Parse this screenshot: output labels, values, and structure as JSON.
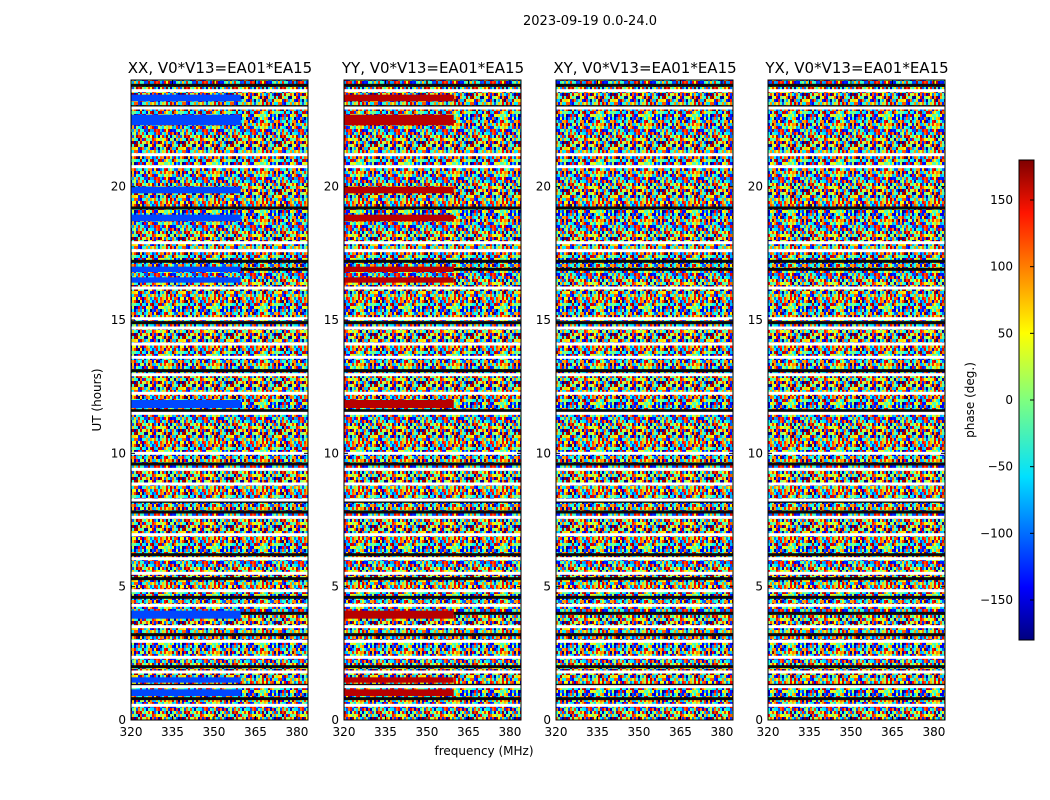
{
  "suptitle": "2023-09-19 0.0-24.0",
  "chart_data": {
    "type": "heatmap",
    "x_label": "frequency (MHz)",
    "y_label": "UT (hours)",
    "x_ticks": [
      "320",
      "335",
      "350",
      "365",
      "380"
    ],
    "x_tick_values": [
      320,
      335,
      350,
      365,
      380
    ],
    "x_range": [
      320,
      384
    ],
    "y_ticks": [
      "0",
      "5",
      "10",
      "15",
      "20"
    ],
    "y_tick_values": [
      0,
      5,
      10,
      15,
      20
    ],
    "y_range": [
      0,
      24
    ],
    "colorbar": {
      "label": "phase (deg.)",
      "range": [
        -180,
        180
      ],
      "ticks": [
        "150",
        "100",
        "50",
        "0",
        "−50",
        "−100",
        "−150"
      ],
      "tick_values": [
        150,
        100,
        50,
        0,
        -50,
        -100,
        -150
      ],
      "colormap": "jet"
    },
    "panels": [
      {
        "title": "XX, V0*V13=EA01*EA15",
        "coherent_phase_deg": -110,
        "coherent_bands_hours": [
          [
            23.2,
            23.45
          ],
          [
            22.3,
            22.7
          ],
          [
            19.75,
            20.0
          ],
          [
            18.7,
            18.95
          ],
          [
            16.8,
            17.0
          ],
          [
            16.4,
            16.6
          ],
          [
            11.7,
            12.0
          ],
          [
            3.8,
            4.1
          ],
          [
            1.4,
            1.6
          ],
          [
            0.9,
            1.15
          ]
        ]
      },
      {
        "title": "YY, V0*V13=EA01*EA15",
        "coherent_phase_deg": 160,
        "coherent_bands_hours": [
          [
            23.2,
            23.45
          ],
          [
            22.3,
            22.7
          ],
          [
            19.75,
            20.0
          ],
          [
            18.7,
            18.95
          ],
          [
            16.8,
            17.0
          ],
          [
            16.4,
            16.6
          ],
          [
            11.7,
            12.0
          ],
          [
            3.8,
            4.1
          ],
          [
            1.4,
            1.6
          ],
          [
            0.9,
            1.15
          ]
        ]
      },
      {
        "title": "XY, V0*V13=EA01*EA15",
        "coherent_phase_deg": null,
        "coherent_bands_hours": []
      },
      {
        "title": "YX, V0*V13=EA01*EA15",
        "coherent_phase_deg": null,
        "coherent_bands_hours": []
      }
    ],
    "blank_rows_hours": [
      23.6,
      22.95,
      21.2,
      20.75,
      17.9,
      17.6,
      16.2,
      15.05,
      14.7,
      14.1,
      13.6,
      12.95,
      12.25,
      11.5,
      10.0,
      9.4,
      8.85,
      8.25,
      7.6,
      6.95,
      6.05,
      5.5,
      4.85,
      4.3,
      3.5,
      2.95,
      2.35,
      1.8,
      1.25,
      0.55
    ],
    "dark_rows_hours": [
      23.8,
      23.0,
      19.2,
      17.2,
      16.9,
      14.9,
      13.1,
      11.6,
      9.6,
      8.2,
      7.8,
      6.2,
      5.3,
      4.6,
      4.0,
      3.2,
      2.0,
      1.3,
      0.8
    ]
  }
}
